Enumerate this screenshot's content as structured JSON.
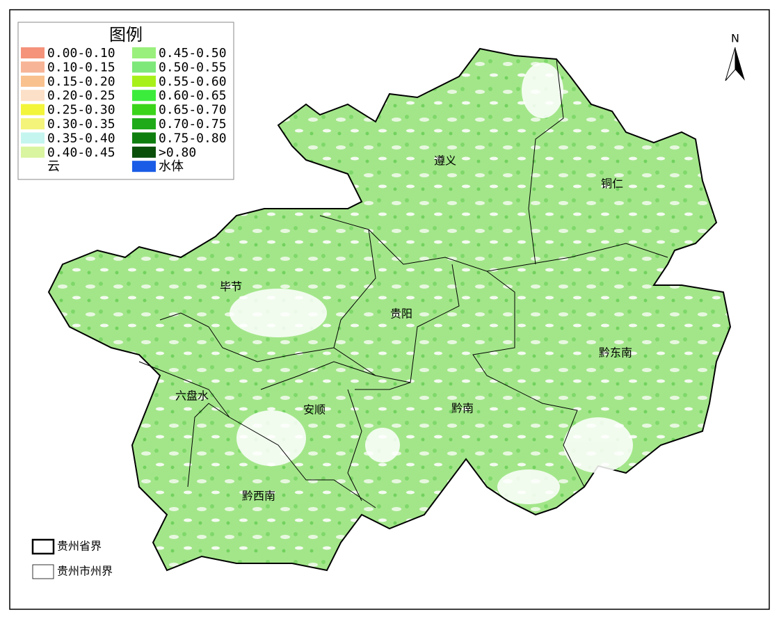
{
  "legend": {
    "title": "图例",
    "items": [
      {
        "label": "0.00-0.10",
        "color": "#f4937a"
      },
      {
        "label": "0.10-0.15",
        "color": "#f7b496"
      },
      {
        "label": "0.15-0.20",
        "color": "#f9c18e"
      },
      {
        "label": "0.20-0.25",
        "color": "#fde0c8"
      },
      {
        "label": "0.25-0.30",
        "color": "#f2f53a"
      },
      {
        "label": "0.30-0.35",
        "color": "#f4f47a"
      },
      {
        "label": "0.35-0.40",
        "color": "#c5f5ef"
      },
      {
        "label": "0.40-0.45",
        "color": "#d9f5a0"
      },
      {
        "label": "云",
        "color": "#ffffff"
      },
      {
        "label": "0.45-0.50",
        "color": "#9af07c"
      },
      {
        "label": "0.50-0.55",
        "color": "#7ee87a"
      },
      {
        "label": "0.55-0.60",
        "color": "#a8f01a"
      },
      {
        "label": "0.60-0.65",
        "color": "#3cec3c"
      },
      {
        "label": "0.65-0.70",
        "color": "#3ad41a"
      },
      {
        "label": "0.70-0.75",
        "color": "#1faa1a"
      },
      {
        "label": "0.75-0.80",
        "color": "#0e7f0e"
      },
      {
        "label": ">0.80",
        "color": "#0a4f0a"
      },
      {
        "label": "水体",
        "color": "#1a5ce6"
      }
    ]
  },
  "regions": [
    {
      "label": "遵义"
    },
    {
      "label": "铜仁"
    },
    {
      "label": "毕节"
    },
    {
      "label": "贵阳"
    },
    {
      "label": "黔东南"
    },
    {
      "label": "六盘水"
    },
    {
      "label": "安顺"
    },
    {
      "label": "黔南"
    },
    {
      "label": "黔西南"
    }
  ],
  "north": "N",
  "boundary_legend": [
    {
      "label": "贵州省界"
    },
    {
      "label": "贵州市州界"
    }
  ]
}
